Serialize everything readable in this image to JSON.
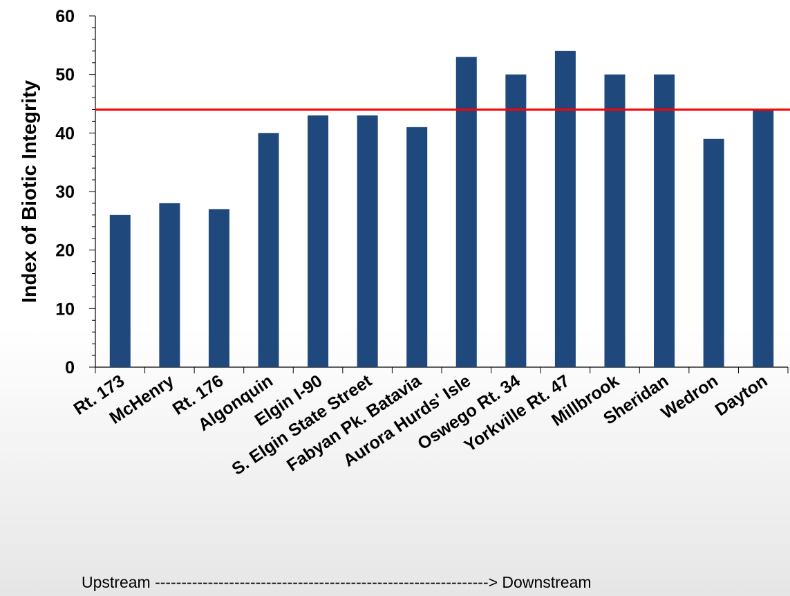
{
  "chart_data": {
    "type": "bar",
    "ylabel": "Index of Biotic Integrity",
    "ylim": [
      0,
      60
    ],
    "yticks": [
      0,
      10,
      20,
      30,
      40,
      50,
      60
    ],
    "categories": [
      "Rt. 173",
      "McHenry",
      "Rt. 176",
      "Algonquin",
      "Elgin I-90",
      "S. Elgin State Street",
      "Fabyan Pk. Batavia",
      "Aurora Hurds' Isle",
      "Oswego  Rt. 34",
      "Yorkville Rt. 47",
      "Millbrook",
      "Sheridan",
      "Wedron",
      "Dayton"
    ],
    "values": [
      26,
      28,
      27,
      40,
      43,
      43,
      41,
      53,
      50,
      54,
      50,
      50,
      39,
      44
    ],
    "reference_line": 44,
    "bar_color": "#1f497d",
    "reference_line_color": "#ff0000",
    "footer": "Upstream ---------------------------------------------------------------> Downstream"
  }
}
